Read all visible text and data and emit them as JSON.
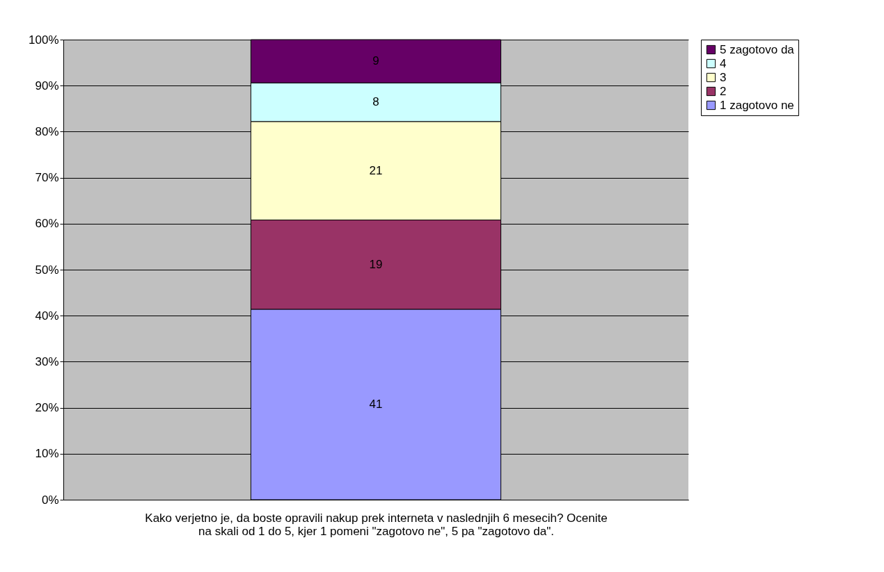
{
  "chart_data": {
    "type": "bar",
    "stacked": true,
    "xlabel": "Kako verjetno je, da boste opravili nakup prek interneta v naslednjih 6 mesecih? Ocenite\nna skali od 1 do 5, kjer 1 pomeni \"zagotovo ne\", 5 pa \"zagotovo da\".",
    "categories": [
      null
    ],
    "series": [
      {
        "name": "1 zagotovo ne",
        "color": "#9999ff",
        "values": [
          41.4
        ],
        "value_labels": [
          "41"
        ]
      },
      {
        "name": "2",
        "color": "#993366",
        "values": [
          19.4
        ],
        "value_labels": [
          "19"
        ]
      },
      {
        "name": "3",
        "color": "#ffffcc",
        "values": [
          21.4
        ],
        "value_labels": [
          "21"
        ]
      },
      {
        "name": "4",
        "color": "#ccffff",
        "values": [
          8.4
        ],
        "value_labels": [
          "8"
        ]
      },
      {
        "name": "5 zagotovo da",
        "color": "#660066",
        "values": [
          9.4
        ],
        "value_labels": [
          "9"
        ]
      }
    ],
    "ylim": [
      0,
      100
    ],
    "yticks": [
      {
        "value": 0,
        "label": "0%"
      },
      {
        "value": 10,
        "label": "10%"
      },
      {
        "value": 20,
        "label": "20%"
      },
      {
        "value": 30,
        "label": "30%"
      },
      {
        "value": 40,
        "label": "40%"
      },
      {
        "value": 50,
        "label": "50%"
      },
      {
        "value": 60,
        "label": "60%"
      },
      {
        "value": 70,
        "label": "70%"
      },
      {
        "value": 80,
        "label": "80%"
      },
      {
        "value": 90,
        "label": "90%"
      },
      {
        "value": 100,
        "label": "100%"
      }
    ],
    "grid": "y",
    "legend": "right",
    "tick_labels": "y"
  }
}
